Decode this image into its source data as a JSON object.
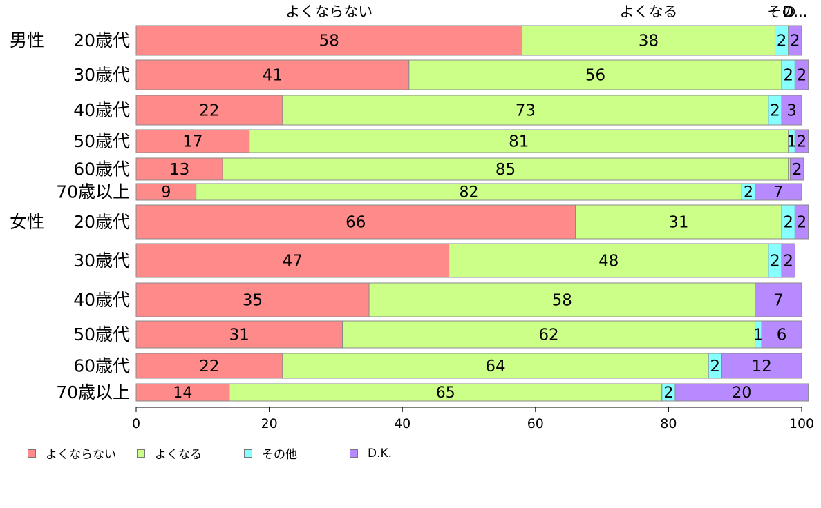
{
  "chart_data": {
    "type": "bar",
    "orientation": "horizontal",
    "stacked": true,
    "xlim": [
      0,
      100
    ],
    "x_ticks": [
      0,
      20,
      40,
      60,
      80,
      100
    ],
    "top_labels": [
      "よくならない",
      "よくなる",
      "その他",
      "D.K."
    ],
    "top_labels_visible": [
      "よくならない",
      "よくなる",
      "その",
      "D..."
    ],
    "groups": [
      {
        "label": "男性",
        "categories": [
          "20歳代",
          "30歳代",
          "40歳代",
          "50歳代",
          "60歳代",
          "70歳以上"
        ]
      },
      {
        "label": "女性",
        "categories": [
          "20歳代",
          "30歳代",
          "40歳代",
          "50歳代",
          "60歳代",
          "70歳以上"
        ]
      }
    ],
    "series": [
      {
        "name": "よくならない",
        "color": "#FF8A8A",
        "values": [
          58,
          41,
          22,
          17,
          13,
          9,
          66,
          47,
          35,
          31,
          22,
          14
        ],
        "labels": [
          "58",
          "41",
          "22",
          "17",
          "13",
          "9",
          "66",
          "47",
          "35",
          "31",
          "22",
          "14"
        ]
      },
      {
        "name": "よくなる",
        "color": "#CCFF88",
        "values": [
          38,
          56,
          73,
          81,
          85,
          82,
          31,
          48,
          58,
          62,
          64,
          65
        ],
        "labels": [
          "38",
          "56",
          "73",
          "81",
          "85",
          "82",
          "31",
          "48",
          "58",
          "62",
          "64",
          "65"
        ]
      },
      {
        "name": "その他",
        "color": "#88FFFF",
        "values": [
          2,
          2,
          2,
          1,
          0.3,
          2,
          2,
          2,
          0,
          1,
          2,
          2
        ],
        "labels": [
          "2",
          "2",
          "2",
          "1",
          "",
          "2",
          "2",
          "2",
          "",
          "1",
          "2",
          "2"
        ]
      },
      {
        "name": "D.K.",
        "color": "#B88AFF",
        "values": [
          2,
          2,
          3,
          2,
          2,
          7,
          2,
          2,
          7,
          6,
          12,
          20
        ],
        "labels": [
          "2",
          "2",
          "3",
          "2",
          "2",
          "7",
          "2",
          "2",
          "7",
          "6",
          "12",
          "20"
        ]
      }
    ]
  }
}
